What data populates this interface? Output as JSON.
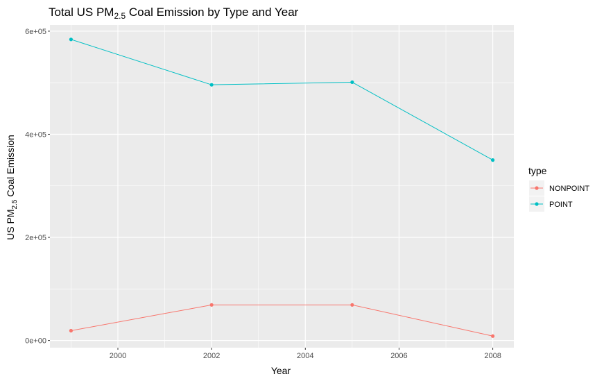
{
  "chart_data": {
    "type": "line",
    "title": {
      "prefix": "Total US PM",
      "subscript": "2.5",
      "suffix": " Coal Emission by Type and Year"
    },
    "xlabel": "Year",
    "ylabel": {
      "prefix": "US PM",
      "subscript": "2.5",
      "suffix": " Coal Emission"
    },
    "x": [
      1999,
      2002,
      2005,
      2008
    ],
    "xlim": [
      1998.55,
      2008.45
    ],
    "xticks": [
      2000,
      2002,
      2004,
      2006,
      2008
    ],
    "xtick_labels": [
      "2000",
      "2002",
      "2004",
      "2006",
      "2008"
    ],
    "ylim": [
      -14000,
      612000
    ],
    "yticks": [
      0,
      200000,
      400000,
      600000
    ],
    "ytick_labels": [
      "0e+00",
      "2e+05",
      "4e+05",
      "6e+05"
    ],
    "grid": true,
    "legend": {
      "title": "type",
      "position": "right"
    },
    "series": [
      {
        "name": "NONPOINT",
        "color": "#F8766D",
        "values": [
          19000,
          69000,
          69000,
          8500
        ]
      },
      {
        "name": "POINT",
        "color": "#00BFC4",
        "values": [
          584000,
          496000,
          501000,
          350000
        ]
      }
    ]
  }
}
